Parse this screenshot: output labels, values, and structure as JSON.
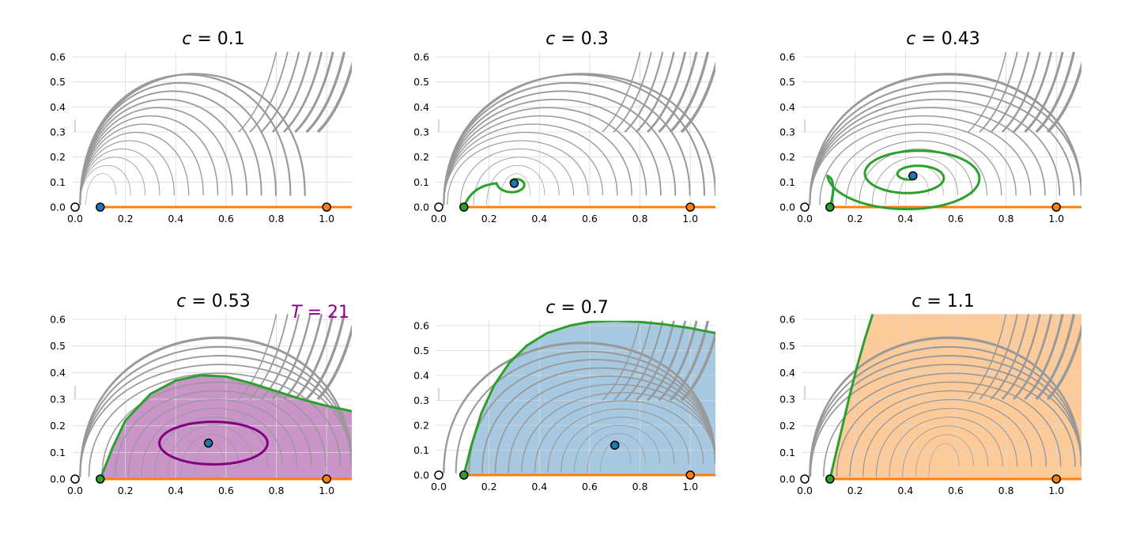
{
  "colors": {
    "grid": "#d9d9d9",
    "stream": "#999999",
    "saddle_curve": "#2ca02c",
    "axis_line": "#ff7f0e",
    "periodic_orbit": "#800080",
    "fixed_interior": "#1f77b4",
    "fixed_saddle": "#2ca02c",
    "fixed_right": "#ff7f0e",
    "fixed_origin": "#ffffff",
    "region_purple": "#c994c7",
    "region_blue": "#a6c8e0",
    "region_orange": "#fdca9a"
  },
  "chart_data": [
    {
      "type": "streamplot",
      "title": "c = 0.1",
      "title_var": "c",
      "title_value": "0.1",
      "xlim": [
        -0.02,
        1.1
      ],
      "ylim": [
        -0.02,
        0.62
      ],
      "xticks": [
        "0.0",
        "0.2",
        "0.4",
        "0.6",
        "0.8",
        "1.0"
      ],
      "yticks": [
        "0.0",
        "0.1",
        "0.2",
        "0.3",
        "0.4",
        "0.5",
        "0.6"
      ],
      "grid": true,
      "fixed_points": [
        {
          "x": 0.0,
          "y": 0.0,
          "kind": "origin"
        },
        {
          "x": 0.1,
          "y": 0.0,
          "kind": "interior"
        },
        {
          "x": 1.0,
          "y": 0.0,
          "kind": "right"
        }
      ],
      "axis_segment": {
        "x": [
          0.1,
          1.1
        ],
        "y": 0.0
      },
      "curves": [],
      "region": null,
      "annotation": null
    },
    {
      "type": "streamplot",
      "title": "c = 0.3",
      "title_var": "c",
      "title_value": "0.3",
      "xlim": [
        -0.02,
        1.1
      ],
      "ylim": [
        -0.02,
        0.62
      ],
      "xticks": [
        "0.0",
        "0.2",
        "0.4",
        "0.6",
        "0.8",
        "1.0"
      ],
      "yticks": [
        "0.0",
        "0.1",
        "0.2",
        "0.3",
        "0.4",
        "0.5",
        "0.6"
      ],
      "grid": true,
      "fixed_points": [
        {
          "x": 0.0,
          "y": 0.0,
          "kind": "origin"
        },
        {
          "x": 0.1,
          "y": 0.0,
          "kind": "saddle"
        },
        {
          "x": 1.0,
          "y": 0.0,
          "kind": "right"
        },
        {
          "x": 0.3,
          "y": 0.095,
          "kind": "interior"
        }
      ],
      "axis_segment": {
        "x": [
          0.1,
          1.1
        ],
        "y": 0.0
      },
      "curves": [
        {
          "kind": "spiral",
          "start": [
            0.1,
            0.0
          ],
          "center": [
            0.3,
            0.095
          ],
          "turns": 1.3,
          "rx": 0.07,
          "ry": 0.045
        }
      ],
      "region": null,
      "annotation": null
    },
    {
      "type": "streamplot",
      "title": "c = 0.43",
      "title_var": "c",
      "title_value": "0.43",
      "xlim": [
        -0.02,
        1.1
      ],
      "ylim": [
        -0.02,
        0.62
      ],
      "xticks": [
        "0.0",
        "0.2",
        "0.4",
        "0.6",
        "0.8",
        "1.0"
      ],
      "yticks": [
        "0.0",
        "0.1",
        "0.2",
        "0.3",
        "0.4",
        "0.5",
        "0.6"
      ],
      "grid": true,
      "fixed_points": [
        {
          "x": 0.0,
          "y": 0.0,
          "kind": "origin"
        },
        {
          "x": 0.1,
          "y": 0.0,
          "kind": "saddle"
        },
        {
          "x": 1.0,
          "y": 0.0,
          "kind": "right"
        },
        {
          "x": 0.43,
          "y": 0.125,
          "kind": "interior"
        }
      ],
      "axis_segment": {
        "x": [
          0.1,
          1.1
        ],
        "y": 0.0
      },
      "curves": [
        {
          "kind": "spiral",
          "start": [
            0.1,
            0.0
          ],
          "center": [
            0.43,
            0.125
          ],
          "turns": 2.6,
          "rx": 0.34,
          "ry": 0.15
        }
      ],
      "region": null,
      "annotation": null
    },
    {
      "type": "streamplot",
      "title": "c = 0.53",
      "title_var": "c",
      "title_value": "0.53",
      "xlim": [
        -0.02,
        1.1
      ],
      "ylim": [
        -0.02,
        0.62
      ],
      "xticks": [
        "0.0",
        "0.2",
        "0.4",
        "0.6",
        "0.8",
        "1.0"
      ],
      "yticks": [
        "0.0",
        "0.1",
        "0.2",
        "0.3",
        "0.4",
        "0.5",
        "0.6"
      ],
      "grid": true,
      "fixed_points": [
        {
          "x": 0.0,
          "y": 0.0,
          "kind": "origin"
        },
        {
          "x": 0.1,
          "y": 0.0,
          "kind": "saddle"
        },
        {
          "x": 1.0,
          "y": 0.0,
          "kind": "right"
        },
        {
          "x": 0.53,
          "y": 0.135,
          "kind": "interior"
        }
      ],
      "axis_segment": {
        "x": [
          0.1,
          1.1
        ],
        "y": 0.0
      },
      "curves": [
        {
          "kind": "separatrix",
          "points": [
            [
              0.1,
              0.0
            ],
            [
              0.15,
              0.12
            ],
            [
              0.2,
              0.22
            ],
            [
              0.3,
              0.32
            ],
            [
              0.4,
              0.37
            ],
            [
              0.5,
              0.39
            ],
            [
              0.6,
              0.385
            ],
            [
              0.7,
              0.36
            ],
            [
              0.8,
              0.33
            ],
            [
              0.9,
              0.3
            ],
            [
              1.0,
              0.275
            ],
            [
              1.1,
              0.255
            ]
          ]
        },
        {
          "kind": "orbit",
          "center": [
            0.55,
            0.135
          ],
          "rx": 0.215,
          "ry": 0.08
        }
      ],
      "region": {
        "color": "purple",
        "bound": "separatrix"
      },
      "annotation": {
        "text": "T = 21",
        "var": "T",
        "value": "21"
      }
    },
    {
      "type": "streamplot",
      "title": "c = 0.7",
      "title_var": "c",
      "title_value": "0.7",
      "xlim": [
        -0.02,
        1.1
      ],
      "ylim": [
        -0.02,
        0.62
      ],
      "xticks": [
        "0.0",
        "0.2",
        "0.4",
        "0.6",
        "0.8",
        "1.0"
      ],
      "yticks": [
        "0.0",
        "0.1",
        "0.2",
        "0.3",
        "0.4",
        "0.5",
        "0.6"
      ],
      "grid": true,
      "fixed_points": [
        {
          "x": 0.0,
          "y": 0.0,
          "kind": "origin"
        },
        {
          "x": 0.1,
          "y": 0.0,
          "kind": "saddle"
        },
        {
          "x": 1.0,
          "y": 0.0,
          "kind": "right"
        },
        {
          "x": 0.7,
          "y": 0.12,
          "kind": "interior"
        }
      ],
      "axis_segment": {
        "x": [
          0.1,
          1.1
        ],
        "y": 0.0
      },
      "curves": [
        {
          "kind": "separatrix",
          "points": [
            [
              0.1,
              0.0
            ],
            [
              0.13,
              0.12
            ],
            [
              0.17,
              0.25
            ],
            [
              0.22,
              0.36
            ],
            [
              0.28,
              0.45
            ],
            [
              0.35,
              0.52
            ],
            [
              0.43,
              0.57
            ],
            [
              0.52,
              0.6
            ],
            [
              0.6,
              0.615
            ],
            [
              0.7,
              0.62
            ],
            [
              0.8,
              0.615
            ],
            [
              0.9,
              0.605
            ],
            [
              1.0,
              0.59
            ],
            [
              1.1,
              0.57
            ]
          ]
        }
      ],
      "region": {
        "color": "blue",
        "bound": "separatrix"
      },
      "annotation": null
    },
    {
      "type": "streamplot",
      "title": "c = 1.1",
      "title_var": "c",
      "title_value": "1.1",
      "xlim": [
        -0.02,
        1.1
      ],
      "ylim": [
        -0.02,
        0.62
      ],
      "xticks": [
        "0.0",
        "0.2",
        "0.4",
        "0.6",
        "0.8",
        "1.0"
      ],
      "yticks": [
        "0.0",
        "0.1",
        "0.2",
        "0.3",
        "0.4",
        "0.5",
        "0.6"
      ],
      "grid": true,
      "fixed_points": [
        {
          "x": 0.0,
          "y": 0.0,
          "kind": "origin"
        },
        {
          "x": 0.1,
          "y": 0.0,
          "kind": "saddle"
        },
        {
          "x": 1.0,
          "y": 0.0,
          "kind": "right"
        }
      ],
      "axis_segment": {
        "x": [
          0.1,
          1.1
        ],
        "y": 0.0
      },
      "curves": [
        {
          "kind": "separatrix",
          "points": [
            [
              0.1,
              0.0
            ],
            [
              0.12,
              0.08
            ],
            [
              0.15,
              0.2
            ],
            [
              0.18,
              0.32
            ],
            [
              0.21,
              0.43
            ],
            [
              0.24,
              0.53
            ],
            [
              0.27,
              0.62
            ]
          ]
        }
      ],
      "region": {
        "color": "orange",
        "bound": "separatrix"
      },
      "annotation": null
    }
  ]
}
